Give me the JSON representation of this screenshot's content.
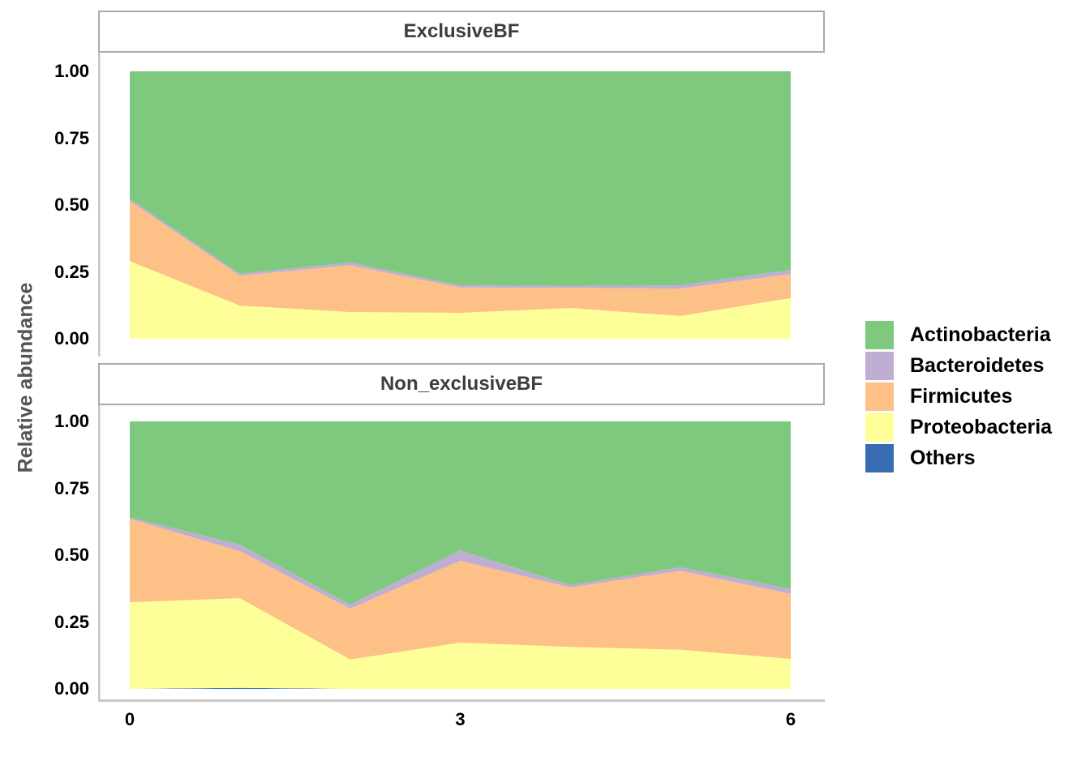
{
  "figure": {
    "y_axis_title": "Relative abundance",
    "x_tick_labels": [
      "0",
      "3",
      "6"
    ],
    "y_tick_labels": [
      "1.00",
      "0.75",
      "0.50",
      "0.25",
      "0.00"
    ],
    "colors": {
      "background": "#ffffff",
      "axis_line": "#c6c6c6",
      "strip_border": "#aaaaaa",
      "strip_text": "#3d3d3d",
      "tick_text": "#000000",
      "axis_title_text": "#555555"
    }
  },
  "legend": {
    "entries": [
      {
        "label": "Actinobacteria",
        "color": "#7FC97F"
      },
      {
        "label": "Bacteroidetes",
        "color": "#BEAED4"
      },
      {
        "label": "Firmicutes",
        "color": "#FDC086"
      },
      {
        "label": "Proteobacteria",
        "color": "#FFFF99"
      },
      {
        "label": "Others",
        "color": "#386CB0"
      }
    ]
  },
  "chart_data": [
    {
      "type": "area",
      "facet": "ExclusiveBF",
      "xlabel": "",
      "ylabel": "Relative abundance",
      "xlim": [
        0,
        6
      ],
      "ylim": [
        0,
        1
      ],
      "x": [
        0,
        1,
        2,
        3,
        4,
        5,
        6
      ],
      "stack_order_bottom_to_top": [
        "Others",
        "Proteobacteria",
        "Firmicutes",
        "Bacteroidetes",
        "Actinobacteria"
      ],
      "series": [
        {
          "name": "Actinobacteria",
          "values": [
            0.477,
            0.757,
            0.715,
            0.8,
            0.803,
            0.8,
            0.742
          ]
        },
        {
          "name": "Bacteroidetes",
          "values": [
            0.008,
            0.007,
            0.01,
            0.008,
            0.007,
            0.012,
            0.016
          ]
        },
        {
          "name": "Firmicutes",
          "values": [
            0.225,
            0.112,
            0.175,
            0.095,
            0.075,
            0.103,
            0.09
          ]
        },
        {
          "name": "Proteobacteria",
          "values": [
            0.29,
            0.124,
            0.1,
            0.097,
            0.115,
            0.085,
            0.152
          ]
        },
        {
          "name": "Others",
          "values": [
            0,
            0,
            0,
            0,
            0,
            0,
            0
          ]
        }
      ]
    },
    {
      "type": "area",
      "facet": "Non_exclusiveBF",
      "xlabel": "",
      "ylabel": "Relative abundance",
      "xlim": [
        0,
        6
      ],
      "ylim": [
        0,
        1
      ],
      "x": [
        0,
        1,
        2,
        3,
        4,
        5,
        6
      ],
      "stack_order_bottom_to_top": [
        "Others",
        "Proteobacteria",
        "Firmicutes",
        "Bacteroidetes",
        "Actinobacteria"
      ],
      "series": [
        {
          "name": "Actinobacteria",
          "values": [
            0.359,
            0.461,
            0.685,
            0.482,
            0.612,
            0.545,
            0.627
          ]
        },
        {
          "name": "Bacteroidetes",
          "values": [
            0.005,
            0.024,
            0.015,
            0.039,
            0.009,
            0.013,
            0.018
          ]
        },
        {
          "name": "Firmicutes",
          "values": [
            0.312,
            0.176,
            0.19,
            0.306,
            0.222,
            0.296,
            0.243
          ]
        },
        {
          "name": "Proteobacteria",
          "values": [
            0.324,
            0.335,
            0.11,
            0.173,
            0.157,
            0.146,
            0.112
          ]
        },
        {
          "name": "Others",
          "values": [
            0,
            0.004,
            0,
            0,
            0,
            0,
            0
          ]
        }
      ]
    }
  ]
}
